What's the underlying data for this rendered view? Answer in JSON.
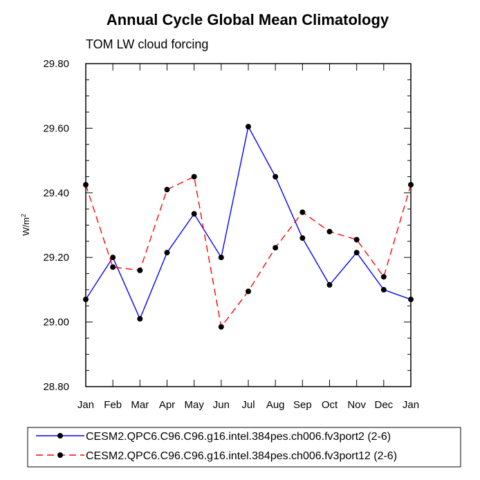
{
  "chart_data": {
    "type": "line",
    "title": "Annual Cycle Global Mean Climatology",
    "subtitle": "TOM LW cloud forcing",
    "xlabel": "",
    "ylabel": "W/m",
    "ylabel_superscript": "2",
    "categories": [
      "Jan",
      "Feb",
      "Mar",
      "Apr",
      "May",
      "Jun",
      "Jul",
      "Aug",
      "Sep",
      "Oct",
      "Nov",
      "Dec",
      "Jan"
    ],
    "ylim": [
      28.8,
      29.8
    ],
    "yticks": [
      "28.80",
      "29.00",
      "29.20",
      "29.40",
      "29.60",
      "29.80"
    ],
    "legend_position": "bottom",
    "series": [
      {
        "name": "CESM2.QPC6.C96.C96.g16.intel.384pes.ch006.fv3port2 (2-6)",
        "color": "#0000ff",
        "dash": "solid",
        "values": [
          29.07,
          29.2,
          29.01,
          29.215,
          29.335,
          29.2,
          29.605,
          29.45,
          29.26,
          29.115,
          29.215,
          29.1,
          29.07
        ]
      },
      {
        "name": "CESM2.QPC6.C96.C96.g16.intel.384pes.ch006.fv3port12 (2-6)",
        "color": "#ff0000",
        "dash": "dashed",
        "values": [
          29.425,
          29.17,
          29.16,
          29.41,
          29.45,
          28.985,
          29.095,
          29.23,
          29.34,
          29.28,
          29.255,
          29.14,
          29.425
        ]
      }
    ]
  }
}
